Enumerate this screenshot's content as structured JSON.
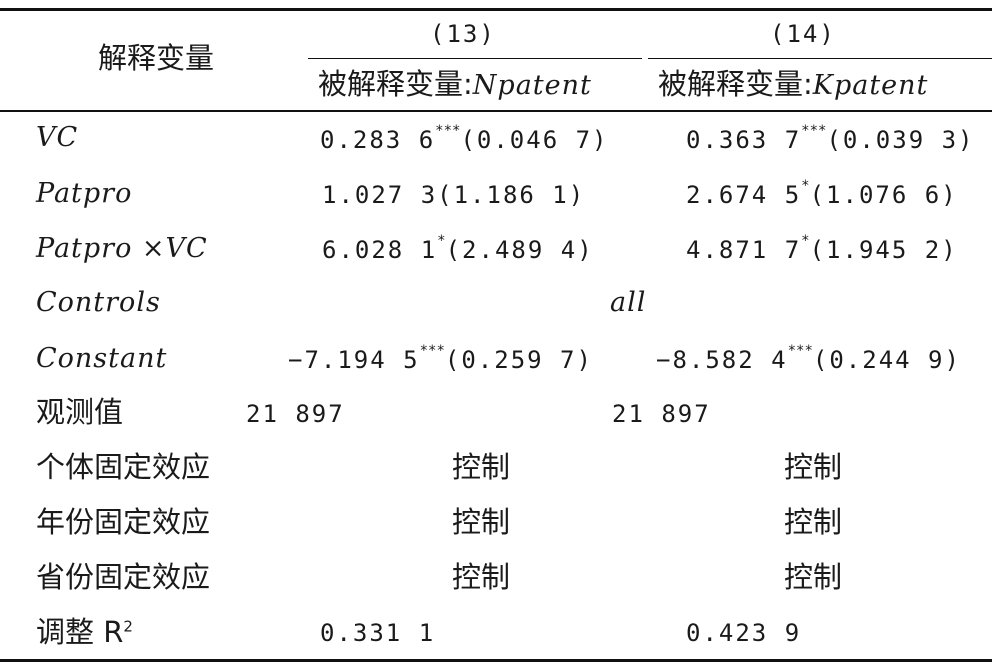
{
  "table": {
    "stub_header": "解释变量",
    "columns": [
      {
        "number": "(13)",
        "dep_label": "被解释变量:",
        "dep_var": "Npatent"
      },
      {
        "number": "(14)",
        "dep_label": "被解释变量:",
        "dep_var": "Kpatent"
      }
    ],
    "rows": [
      {
        "label": "VC",
        "c1_est": "0.283 6",
        "c1_sig": "***",
        "c1_se": "(0.046 7)",
        "c2_est": "0.363 7",
        "c2_sig": "***",
        "c2_se": "(0.039 3)"
      },
      {
        "label": "Patpro",
        "c1_est": "1.027 3",
        "c1_sig": "",
        "c1_se": "(1.186 1)",
        "c2_est": "2.674 5",
        "c2_sig": "*",
        "c2_se": "(1.076 6)"
      },
      {
        "label": "Patpro ×VC",
        "c1_est": "6.028 1",
        "c1_sig": "*",
        "c1_se": "(2.489 4)",
        "c2_est": "4.871 7",
        "c2_sig": "*",
        "c2_se": "(1.945 2)"
      },
      {
        "label": "Controls",
        "merged": "all"
      },
      {
        "label": "Constant",
        "c1_est": "−7.194 5",
        "c1_sig": "***",
        "c1_se": "(0.259 7)",
        "c2_est": "−8.582 4",
        "c2_sig": "***",
        "c2_se": "(0.244 9)"
      },
      {
        "label": "观测值",
        "c1": "21 897",
        "c2": "21 897"
      },
      {
        "label": "个体固定效应",
        "c1": "控制",
        "c2": "控制"
      },
      {
        "label": "年份固定效应",
        "c1": "控制",
        "c2": "控制"
      },
      {
        "label": "省份固定效应",
        "c1": "控制",
        "c2": "控制"
      },
      {
        "label": "调整 R",
        "label_sup": "2",
        "c1": "0.331 1",
        "c2": "0.423 9"
      }
    ]
  }
}
